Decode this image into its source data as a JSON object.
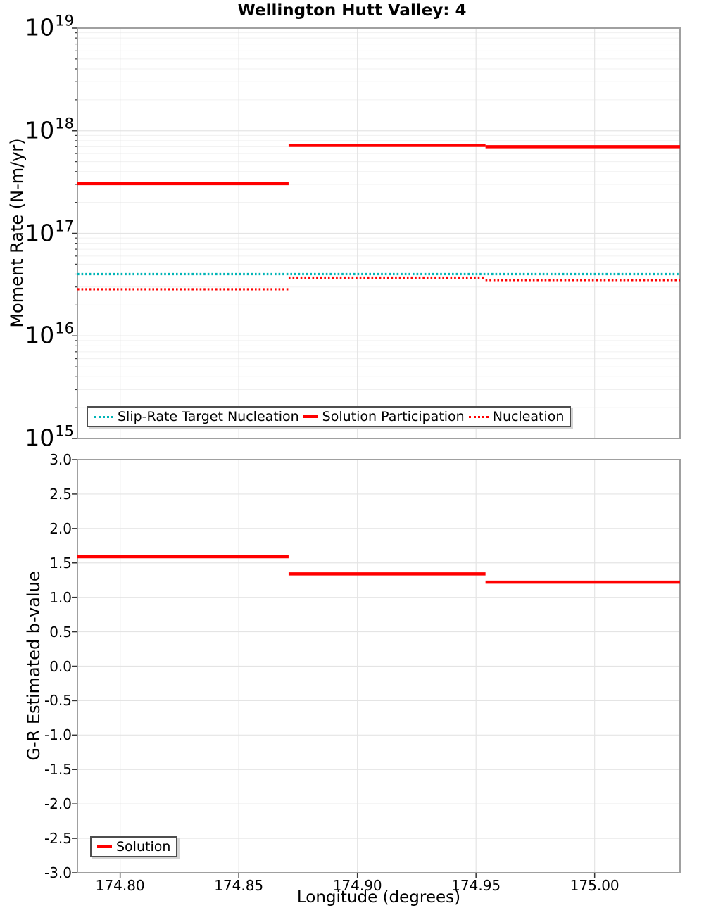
{
  "figure_title": "Wellington Hutt Valley: 4",
  "chart_data": [
    {
      "type": "line",
      "subplot": "top",
      "title": "Wellington Hutt Valley: 4",
      "ylabel": "Moment Rate (N-m/yr)",
      "xlabel": "",
      "yscale": "log",
      "ylim_exp": [
        15,
        19
      ],
      "ytick_base": "10",
      "ytick_exponents": [
        19,
        18,
        17,
        16,
        15
      ],
      "xlim": [
        174.782,
        175.036
      ],
      "xticks": [
        {
          "v": 174.8,
          "label": "174.80"
        },
        {
          "v": 174.85,
          "label": "174.85"
        },
        {
          "v": 174.9,
          "label": "174.90"
        },
        {
          "v": 174.95,
          "label": "174.95"
        },
        {
          "v": 175.0,
          "label": "175.00"
        }
      ],
      "grid": true,
      "legend_position": "lower left inside",
      "series": [
        {
          "name": "Slip-Rate Target Nucleation",
          "color": "#00b4b6",
          "style": "dotted",
          "line_width": 3.2,
          "steps": [
            {
              "x0": 174.782,
              "x1": 175.036,
              "y": 4e+16
            }
          ]
        },
        {
          "name": "Solution Participation",
          "color": "#ff0000",
          "style": "solid",
          "line_width": 4.5,
          "steps": [
            {
              "x0": 174.782,
              "x1": 174.871,
              "y": 3.05e+17
            },
            {
              "x0": 174.871,
              "x1": 174.954,
              "y": 7.2e+17
            },
            {
              "x0": 174.954,
              "x1": 175.036,
              "y": 7e+17
            }
          ]
        },
        {
          "name": "Nucleation",
          "color": "#ff0000",
          "style": "dotted",
          "line_width": 3.2,
          "steps": [
            {
              "x0": 174.782,
              "x1": 174.871,
              "y": 2.85e+16
            },
            {
              "x0": 174.871,
              "x1": 174.954,
              "y": 3.7e+16
            },
            {
              "x0": 174.954,
              "x1": 175.036,
              "y": 3.5e+16
            }
          ]
        }
      ]
    },
    {
      "type": "line",
      "subplot": "bottom",
      "title": "",
      "ylabel": "G-R Estimated b-value",
      "xlabel": "Longitude (degrees)",
      "yscale": "linear",
      "ylim": [
        -3.0,
        3.0
      ],
      "yticks": [
        {
          "v": 3.0,
          "label": "3.0"
        },
        {
          "v": 2.5,
          "label": "2.5"
        },
        {
          "v": 2.0,
          "label": "2.0"
        },
        {
          "v": 1.5,
          "label": "1.5"
        },
        {
          "v": 1.0,
          "label": "1.0"
        },
        {
          "v": 0.5,
          "label": "0.5"
        },
        {
          "v": 0.0,
          "label": "0.0"
        },
        {
          "v": -0.5,
          "label": "-0.5"
        },
        {
          "v": -1.0,
          "label": "-1.0"
        },
        {
          "v": -1.5,
          "label": "-1.5"
        },
        {
          "v": -2.0,
          "label": "-2.0"
        },
        {
          "v": -2.5,
          "label": "-2.5"
        },
        {
          "v": -3.0,
          "label": "-3.0"
        }
      ],
      "xlim": [
        174.782,
        175.036
      ],
      "xticks": [
        {
          "v": 174.8,
          "label": "174.80"
        },
        {
          "v": 174.85,
          "label": "174.85"
        },
        {
          "v": 174.9,
          "label": "174.90"
        },
        {
          "v": 174.95,
          "label": "174.95"
        },
        {
          "v": 175.0,
          "label": "175.00"
        }
      ],
      "grid": true,
      "legend_position": "lower left inside",
      "series": [
        {
          "name": "Solution",
          "color": "#ff0000",
          "style": "solid",
          "line_width": 4.5,
          "steps": [
            {
              "x0": 174.782,
              "x1": 174.871,
              "y": 1.59
            },
            {
              "x0": 174.871,
              "x1": 174.954,
              "y": 1.34
            },
            {
              "x0": 174.954,
              "x1": 175.036,
              "y": 1.22
            }
          ]
        }
      ]
    }
  ],
  "style": {
    "accent_red": "#ff0000",
    "accent_teal": "#00b4b6",
    "grid_minor": "#f0f0f0",
    "grid_major": "#e4e4e4",
    "frame": "#a0a0a0",
    "tick": "#333333"
  }
}
